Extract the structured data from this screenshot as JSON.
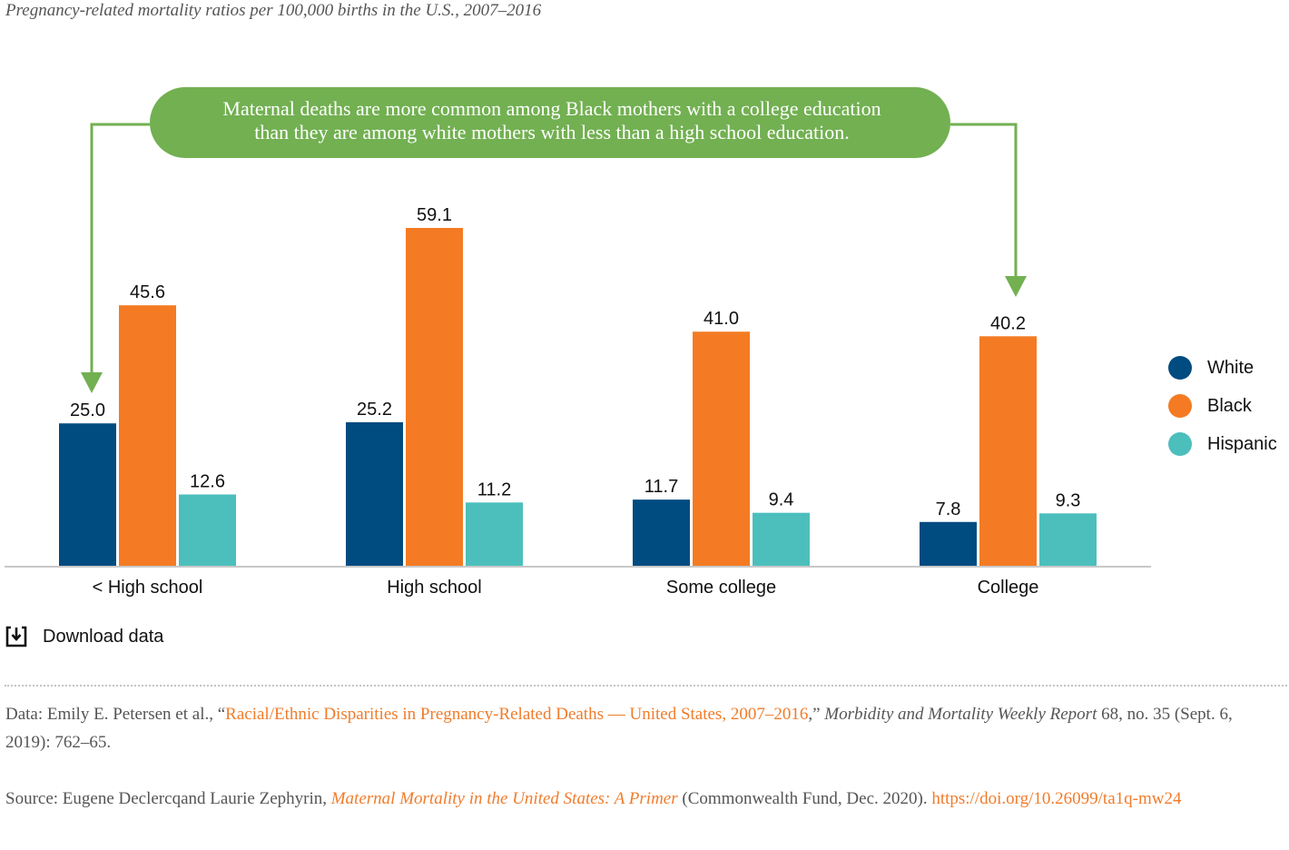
{
  "subtitle": "Pregnancy-related mortality ratios per 100,000 births in the U.S., 2007–2016",
  "callout": {
    "line1": "Maternal deaths are more common among Black mothers with a college education",
    "line2": "than they are among white mothers with less than a high school education.",
    "color": "#72b051"
  },
  "chart_data": {
    "type": "bar",
    "title": "Pregnancy-related mortality ratios per 100,000 births in the U.S., 2007–2016",
    "categories": [
      "< High school",
      "High school",
      "Some college",
      "College"
    ],
    "series": [
      {
        "name": "White",
        "values": [
          25.0,
          25.2,
          11.7,
          7.8
        ],
        "color": "#004b80"
      },
      {
        "name": "Black",
        "values": [
          45.6,
          59.1,
          41.0,
          40.2
        ],
        "color": "#f47b23"
      },
      {
        "name": "Hispanic",
        "values": [
          12.6,
          11.2,
          9.4,
          9.3
        ],
        "color": "#4cbfbd"
      }
    ],
    "ylim": [
      0,
      60
    ],
    "grid": false,
    "legend": "right",
    "xlabel": "",
    "ylabel": ""
  },
  "download": {
    "label": "Download data",
    "icon": "download-icon"
  },
  "notes": {
    "data_prefix": "Data: Emily E. Petersen et al., “",
    "data_link": "Racial/Ethnic Disparities in Pregnancy-Related Deaths — United States, 2007–2016",
    "data_mid": ",” ",
    "data_journal": "Morbidity and Mortality Weekly Report",
    "data_suffix": " 68, no. 35 (Sept. 6, 2019): 762–65.",
    "source_prefix": "Source: Eugene Declercqand Laurie Zephyrin, ",
    "source_title": "Maternal Mortality in the United States: A Primer",
    "source_mid": " (Commonwealth Fund, Dec. 2020). ",
    "source_link": "https://doi.org/10.26099/ta1q-mw24"
  }
}
